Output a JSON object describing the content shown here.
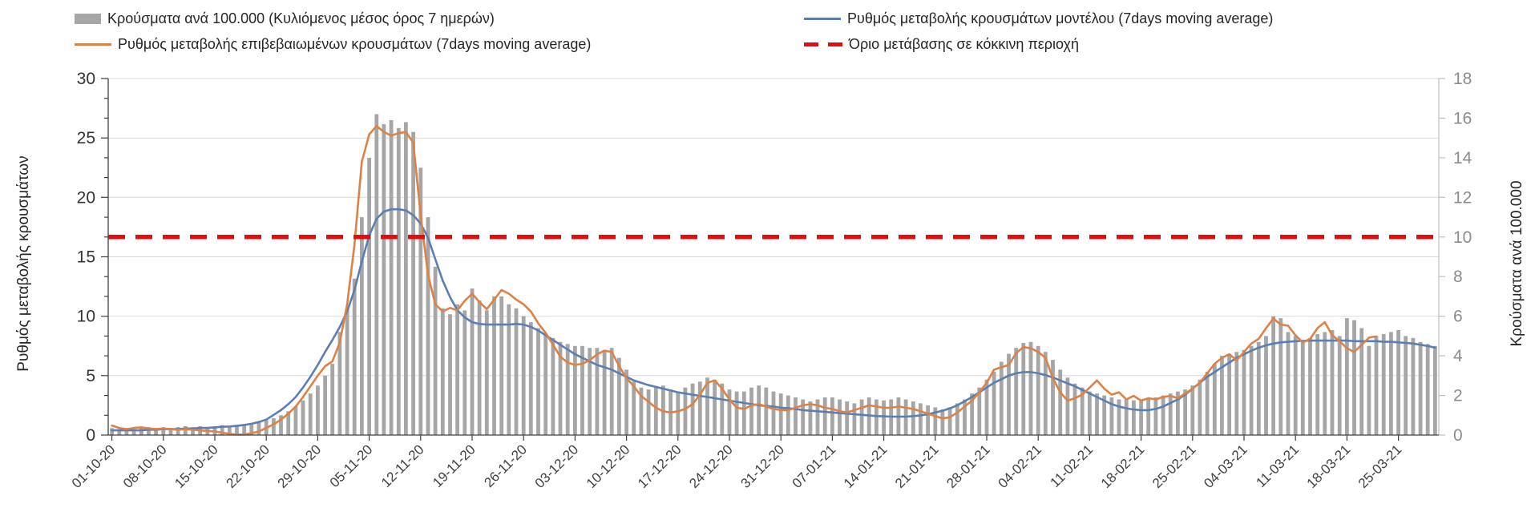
{
  "chart_data": {
    "type": "combo-bar-line",
    "x_start": "01-10-20",
    "x_step_days": 1,
    "x_tick_every_days": 7,
    "x_tick_labels": [
      "01-10-20",
      "08-10-20",
      "15-10-20",
      "22-10-20",
      "29-10-20",
      "05-11-20",
      "12-11-20",
      "19-11-20",
      "26-11-20",
      "03-12-20",
      "10-12-20",
      "17-12-20",
      "24-12-20",
      "31-12-20",
      "07-01-21",
      "14-01-21",
      "21-01-21",
      "28-01-21",
      "04-02-21",
      "11-02-21",
      "18-02-21",
      "25-02-21",
      "04-03-21",
      "11-03-21",
      "18-03-21",
      "25-03-21"
    ],
    "left_axis": {
      "label": "Ρυθμός μεταβολής κρουσμάτων",
      "min": 0,
      "max": 30,
      "ticks": [
        0,
        5,
        10,
        15,
        20,
        25,
        30
      ]
    },
    "right_axis": {
      "label": "Κρούσματα ανά 100.000",
      "min": 0,
      "max": 18,
      "ticks": [
        0,
        2,
        4,
        6,
        8,
        10,
        12,
        14,
        16,
        18
      ]
    },
    "threshold": {
      "label": "Όριο μετάβασης σε κόκκινη περιοχή",
      "value_right_axis": 10,
      "color": "#e60c0c"
    },
    "colors": {
      "bar": "#a6a6a6",
      "model": "#5b7fb5",
      "confirmed": "#dd8246",
      "grid": "#d9d9d9"
    },
    "legend_position": "top",
    "grid": "horizontal",
    "series": [
      {
        "name": "Κρούσματα ανά 100.000 (Κυλιόμενος μέσος όρος 7 ημερών)",
        "type": "bar",
        "axis": "right",
        "color": "#a6a6a6",
        "values": [
          0.35,
          0.3,
          0.35,
          0.3,
          0.35,
          0.4,
          0.35,
          0.4,
          0.35,
          0.4,
          0.45,
          0.4,
          0.45,
          0.4,
          0.45,
          0.5,
          0.45,
          0.5,
          0.55,
          0.6,
          0.65,
          0.75,
          0.85,
          1.0,
          1.2,
          1.45,
          1.75,
          2.1,
          2.5,
          3.0,
          3.6,
          5.2,
          6.4,
          7.9,
          11.0,
          14.0,
          16.2,
          15.7,
          15.9,
          15.5,
          15.8,
          15.3,
          13.5,
          11.0,
          8.5,
          6.4,
          6.1,
          6.6,
          6.3,
          7.4,
          6.8,
          6.3,
          7.0,
          7.0,
          6.6,
          6.4,
          6.0,
          5.7,
          5.4,
          5.1,
          4.9,
          4.7,
          4.6,
          4.5,
          4.5,
          4.4,
          4.4,
          4.3,
          4.4,
          3.9,
          3.3,
          2.7,
          2.4,
          2.3,
          2.4,
          2.5,
          2.3,
          2.2,
          2.4,
          2.6,
          2.7,
          2.9,
          2.8,
          2.6,
          2.3,
          2.2,
          2.2,
          2.4,
          2.5,
          2.4,
          2.2,
          2.1,
          2.0,
          1.9,
          1.8,
          1.7,
          1.8,
          1.9,
          1.9,
          1.8,
          1.7,
          1.6,
          1.8,
          1.9,
          1.8,
          1.75,
          1.8,
          1.9,
          1.8,
          1.7,
          1.6,
          1.5,
          1.4,
          1.3,
          1.4,
          1.6,
          1.8,
          2.1,
          2.4,
          2.8,
          3.2,
          3.7,
          4.1,
          4.4,
          4.65,
          4.7,
          4.5,
          4.2,
          3.8,
          3.3,
          2.9,
          2.6,
          2.4,
          2.2,
          2.1,
          2.0,
          1.9,
          1.8,
          1.8,
          1.75,
          1.8,
          1.85,
          1.9,
          2.0,
          2.1,
          2.2,
          2.3,
          2.5,
          2.8,
          3.2,
          3.6,
          4.0,
          4.1,
          4.2,
          4.3,
          4.5,
          4.7,
          5.0,
          6.0,
          5.9,
          5.2,
          5.0,
          4.8,
          4.9,
          5.1,
          5.2,
          5.3,
          5.0,
          5.9,
          5.8,
          5.4,
          4.5,
          5.0,
          5.1,
          5.2,
          5.3,
          5.0,
          4.9,
          4.7,
          4.6,
          4.5
        ]
      },
      {
        "name": "Ρυθμός μεταβολής επιβεβαιωμένων κρουσμάτων (7days moving average)",
        "type": "line",
        "axis": "left",
        "color": "#dd8246",
        "values": [
          0.8,
          0.6,
          0.5,
          0.6,
          0.65,
          0.55,
          0.5,
          0.55,
          0.5,
          0.45,
          0.5,
          0.45,
          0.4,
          0.35,
          0.3,
          0.2,
          0.1,
          0.05,
          0.05,
          0.15,
          0.3,
          0.6,
          0.9,
          1.3,
          1.8,
          2.4,
          3.2,
          4.1,
          5.0,
          5.8,
          6.2,
          7.8,
          11.0,
          16.0,
          23.0,
          25.3,
          26.0,
          25.5,
          25.2,
          25.4,
          25.5,
          24.6,
          18.5,
          13.5,
          11.0,
          10.4,
          10.7,
          10.5,
          11.3,
          11.9,
          11.2,
          10.6,
          11.4,
          12.2,
          11.9,
          11.4,
          11.0,
          10.4,
          9.4,
          8.6,
          7.6,
          6.6,
          6.1,
          5.9,
          6.0,
          6.3,
          6.8,
          7.1,
          7.0,
          5.8,
          4.8,
          4.1,
          3.3,
          2.8,
          2.3,
          2.0,
          1.9,
          2.0,
          2.2,
          2.6,
          3.4,
          4.4,
          4.6,
          3.9,
          3.0,
          2.3,
          2.2,
          2.5,
          2.6,
          2.4,
          2.2,
          2.1,
          2.1,
          2.3,
          2.5,
          2.6,
          2.5,
          2.3,
          2.2,
          2.0,
          1.9,
          2.1,
          2.3,
          2.5,
          2.4,
          2.3,
          2.3,
          2.4,
          2.3,
          2.2,
          2.0,
          1.8,
          1.6,
          1.4,
          1.5,
          1.9,
          2.4,
          2.9,
          3.6,
          4.4,
          5.5,
          5.7,
          5.9,
          6.9,
          7.4,
          7.3,
          7.0,
          6.5,
          4.8,
          3.6,
          2.9,
          3.1,
          3.4,
          4.0,
          4.6,
          3.9,
          3.4,
          3.6,
          3.0,
          3.3,
          2.9,
          3.1,
          3.0,
          3.2,
          3.3,
          3.1,
          3.5,
          3.9,
          4.4,
          5.2,
          6.0,
          6.5,
          6.8,
          6.3,
          7.0,
          7.7,
          8.1,
          9.0,
          9.8,
          9.3,
          9.2,
          8.4,
          7.8,
          8.1,
          9.0,
          9.5,
          8.4,
          7.9,
          7.3,
          7.0,
          7.6,
          8.2,
          8.3,
          null,
          null,
          null,
          null,
          null,
          null,
          null,
          null
        ]
      },
      {
        "name": "Ρυθμός μεταβολής κρουσμάτων μοντέλου (7days moving average)",
        "type": "line",
        "axis": "left",
        "color": "#5b7fb5",
        "values": [
          0.4,
          0.4,
          0.4,
          0.4,
          0.4,
          0.45,
          0.45,
          0.5,
          0.5,
          0.5,
          0.55,
          0.55,
          0.6,
          0.6,
          0.65,
          0.7,
          0.72,
          0.78,
          0.85,
          0.95,
          1.1,
          1.3,
          1.7,
          2.1,
          2.6,
          3.2,
          4.0,
          4.9,
          5.9,
          7.0,
          8.0,
          9.1,
          10.4,
          12.2,
          14.6,
          16.8,
          18.2,
          18.8,
          19.0,
          19.0,
          18.9,
          18.5,
          17.8,
          16.6,
          14.8,
          13.0,
          11.6,
          10.5,
          9.9,
          9.5,
          9.35,
          9.3,
          9.3,
          9.3,
          9.3,
          9.35,
          9.3,
          9.1,
          8.8,
          8.4,
          8.0,
          7.6,
          7.2,
          6.8,
          6.5,
          6.2,
          5.9,
          5.7,
          5.5,
          5.2,
          4.9,
          4.6,
          4.4,
          4.2,
          4.05,
          3.9,
          3.75,
          3.6,
          3.5,
          3.4,
          3.3,
          3.2,
          3.1,
          3.0,
          2.9,
          2.8,
          2.7,
          2.6,
          2.5,
          2.45,
          2.4,
          2.3,
          2.25,
          2.2,
          2.1,
          2.05,
          2.0,
          1.95,
          1.9,
          1.85,
          1.8,
          1.75,
          1.7,
          1.65,
          1.6,
          1.58,
          1.55,
          1.55,
          1.55,
          1.6,
          1.65,
          1.75,
          1.9,
          2.05,
          2.25,
          2.5,
          2.85,
          3.2,
          3.6,
          4.0,
          4.4,
          4.7,
          5.0,
          5.2,
          5.3,
          5.3,
          5.2,
          5.05,
          4.85,
          4.6,
          4.35,
          4.1,
          3.8,
          3.5,
          3.2,
          2.9,
          2.6,
          2.4,
          2.25,
          2.15,
          2.1,
          2.1,
          2.2,
          2.4,
          2.7,
          3.0,
          3.4,
          3.9,
          4.4,
          4.9,
          5.3,
          5.7,
          6.1,
          6.5,
          6.8,
          7.1,
          7.35,
          7.55,
          7.7,
          7.8,
          7.85,
          7.9,
          7.92,
          7.95,
          7.95,
          7.95,
          7.95,
          7.95,
          7.95,
          7.9,
          7.9,
          7.9,
          7.9,
          7.85,
          7.85,
          7.8,
          7.75,
          7.7,
          7.6,
          7.5,
          7.35
        ]
      }
    ]
  }
}
